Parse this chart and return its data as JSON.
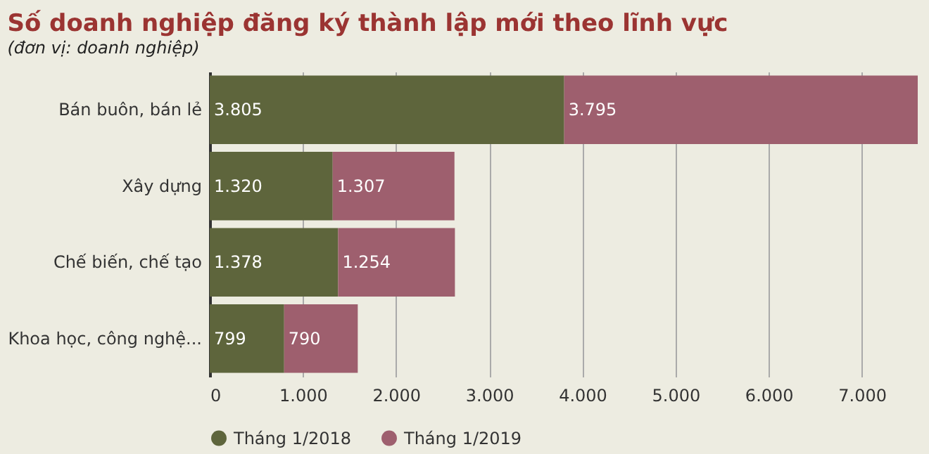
{
  "chart_data": {
    "type": "bar",
    "orientation": "horizontal",
    "stacked": true,
    "title": "Số doanh nghiệp đăng ký thành lập mới theo lĩnh vực",
    "subtitle": "(đơn vị: doanh nghiệp)",
    "categories": [
      "Bán buôn, bán lẻ",
      "Xây dựng",
      "Chế biến, chế tạo",
      "Khoa học, công nghệ..."
    ],
    "series": [
      {
        "name": "Tháng 1/2018",
        "color": "#5e653c",
        "values": [
          3805,
          1320,
          1378,
          799
        ],
        "value_labels": [
          "3.805",
          "1.320",
          "1.378",
          "799"
        ]
      },
      {
        "name": "Tháng 1/2019",
        "color": "#9e5f6e",
        "values": [
          3795,
          1307,
          1254,
          790
        ],
        "value_labels": [
          "3.795",
          "1.307",
          "1.254",
          "790"
        ]
      }
    ],
    "xlim": [
      0,
      7600
    ],
    "xticks": [
      0,
      {
        "value": 1000,
        "label": "1.000"
      },
      {
        "value": 2000,
        "label": "2.000"
      },
      {
        "value": 3000,
        "label": "3.000"
      },
      {
        "value": 4000,
        "label": "4.000"
      },
      {
        "value": 5000,
        "label": "5.000"
      },
      {
        "value": 6000,
        "label": "6.000"
      },
      {
        "value": 7000,
        "label": "7.000"
      }
    ],
    "grid": "x",
    "legend": "bottom"
  }
}
